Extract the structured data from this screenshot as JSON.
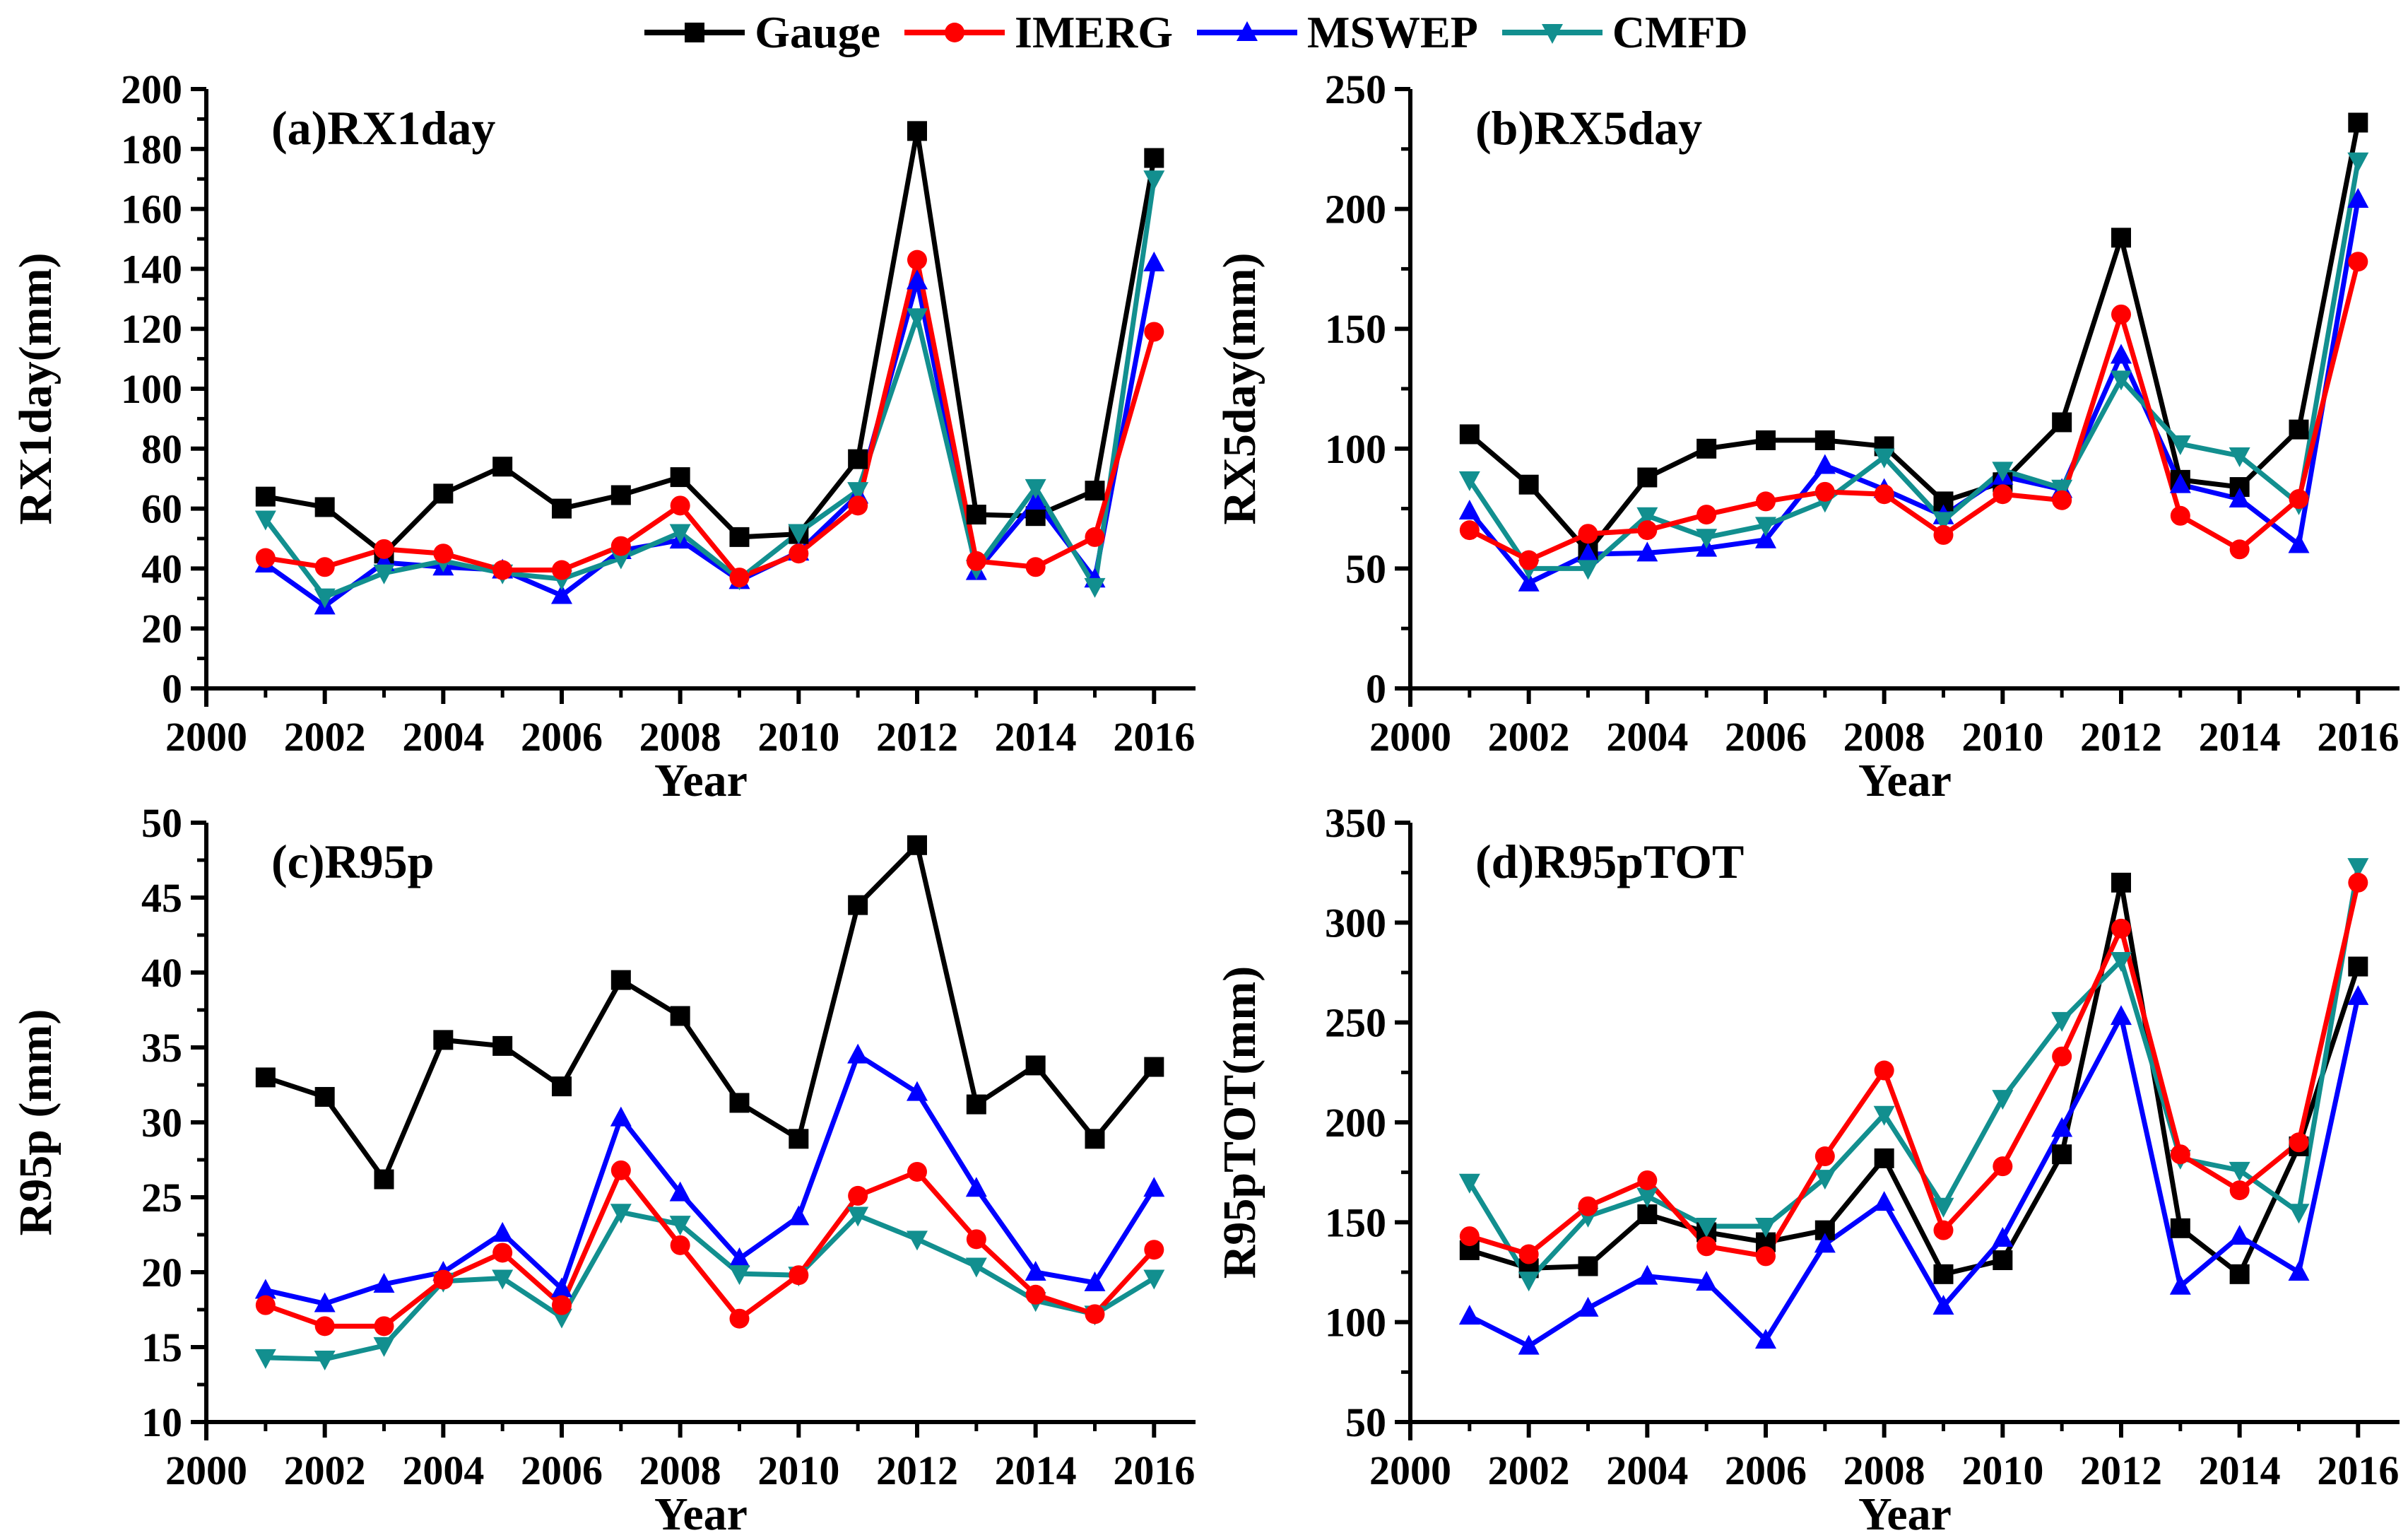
{
  "figure": {
    "background": "#ffffff",
    "legend": {
      "position": "top-center",
      "items": [
        {
          "label": "Gauge",
          "color": "#000000",
          "marker": "square"
        },
        {
          "label": "IMERG",
          "color": "#ff0000",
          "marker": "circle"
        },
        {
          "label": "MSWEP",
          "color": "#0000ff",
          "marker": "triangle-up"
        },
        {
          "label": "CMFD",
          "color": "#128f8f",
          "marker": "triangle-down"
        }
      ]
    }
  },
  "chart_data": [
    {
      "type": "line",
      "panel_label": "(a)RX1day",
      "ylabel": "RX1day(mm)",
      "xlabel": "Year",
      "grid": false,
      "xlim": [
        2000,
        2016.7
      ],
      "ylim": [
        0,
        200
      ],
      "xticks": [
        2000,
        2002,
        2004,
        2006,
        2008,
        2010,
        2012,
        2014,
        2016
      ],
      "xticks_minor": [
        2001,
        2003,
        2005,
        2007,
        2009,
        2011,
        2013,
        2015
      ],
      "ytick_step": 20,
      "ytick_minor_step": 10,
      "x": [
        2001,
        2002,
        2003,
        2004,
        2005,
        2006,
        2007,
        2008,
        2009,
        2010,
        2011,
        2012,
        2013,
        2014,
        2015,
        2016
      ],
      "series": [
        {
          "name": "Gauge",
          "color": "#000000",
          "marker": "square",
          "values": [
            64,
            60.5,
            45,
            65,
            74,
            60,
            64.5,
            70.5,
            50.5,
            51.5,
            76.5,
            186,
            58,
            57.5,
            66,
            177
          ]
        },
        {
          "name": "IMERG",
          "color": "#ff0000",
          "marker": "circle",
          "values": [
            43.5,
            40.5,
            46.5,
            45,
            39.5,
            39.5,
            47.5,
            61,
            37,
            45,
            61,
            143,
            42.5,
            40.5,
            50.5,
            119
          ]
        },
        {
          "name": "MSWEP",
          "color": "#0000ff",
          "marker": "triangle-up",
          "values": [
            41.5,
            27.5,
            42,
            40.5,
            39.5,
            31,
            46,
            49.5,
            36,
            45.5,
            64.5,
            136,
            39,
            62.5,
            36.5,
            142
          ]
        },
        {
          "name": "CMFD",
          "color": "#128f8f",
          "marker": "triangle-down",
          "values": [
            56.5,
            30.5,
            38.5,
            42.5,
            38.5,
            36.5,
            43.5,
            52,
            36.5,
            52,
            66,
            124,
            40,
            67,
            34,
            170
          ]
        }
      ]
    },
    {
      "type": "line",
      "panel_label": "(b)RX5day",
      "ylabel": "RX5day(mm)",
      "xlabel": "Year",
      "grid": false,
      "xlim": [
        2000,
        2016.7
      ],
      "ylim": [
        0,
        250
      ],
      "xticks": [
        2000,
        2002,
        2004,
        2006,
        2008,
        2010,
        2012,
        2014,
        2016
      ],
      "xticks_minor": [
        2001,
        2003,
        2005,
        2007,
        2009,
        2011,
        2013,
        2015
      ],
      "ytick_step": 50,
      "ytick_minor_step": 25,
      "x": [
        2001,
        2002,
        2003,
        2004,
        2005,
        2006,
        2007,
        2008,
        2009,
        2010,
        2011,
        2012,
        2013,
        2014,
        2015,
        2016
      ],
      "series": [
        {
          "name": "Gauge",
          "color": "#000000",
          "marker": "square",
          "values": [
            106,
            85,
            57,
            88,
            100,
            103.5,
            103.5,
            101,
            78,
            86,
            111,
            188,
            87,
            84,
            108,
            236
          ]
        },
        {
          "name": "IMERG",
          "color": "#ff0000",
          "marker": "circle",
          "values": [
            66,
            53.5,
            64.5,
            66,
            72.5,
            78,
            82,
            81,
            64,
            81,
            78.5,
            156,
            72,
            58,
            79,
            178
          ]
        },
        {
          "name": "MSWEP",
          "color": "#0000ff",
          "marker": "triangle-up",
          "values": [
            74,
            44,
            56,
            56.5,
            58.5,
            62,
            93,
            83,
            72,
            88.5,
            83,
            139,
            85,
            79,
            60,
            204
          ]
        },
        {
          "name": "CMFD",
          "color": "#128f8f",
          "marker": "triangle-down",
          "values": [
            87,
            50,
            50,
            72,
            63,
            68,
            78,
            96.5,
            70,
            91,
            83.5,
            129,
            102,
            97,
            77,
            220
          ]
        }
      ]
    },
    {
      "type": "line",
      "panel_label": "(c)R95p",
      "ylabel": "R95p (mm)",
      "xlabel": "Year",
      "grid": false,
      "xlim": [
        2000,
        2016.7
      ],
      "ylim": [
        10,
        50
      ],
      "xticks": [
        2000,
        2002,
        2004,
        2006,
        2008,
        2010,
        2012,
        2014,
        2016
      ],
      "xticks_minor": [
        2001,
        2003,
        2005,
        2007,
        2009,
        2011,
        2013,
        2015
      ],
      "ytick_step": 5,
      "ytick_minor_step": 2.5,
      "x": [
        2001,
        2002,
        2003,
        2004,
        2005,
        2006,
        2007,
        2008,
        2009,
        2010,
        2011,
        2012,
        2013,
        2014,
        2015,
        2016
      ],
      "series": [
        {
          "name": "Gauge",
          "color": "#000000",
          "marker": "square",
          "values": [
            33,
            31.7,
            26.2,
            35.5,
            35.1,
            32.4,
            39.5,
            37.1,
            31.3,
            28.9,
            44.5,
            48.5,
            31.2,
            33.8,
            28.9,
            33.7
          ]
        },
        {
          "name": "IMERG",
          "color": "#ff0000",
          "marker": "circle",
          "values": [
            17.8,
            16.4,
            16.4,
            19.5,
            21.3,
            17.8,
            26.8,
            21.8,
            16.9,
            19.8,
            25.1,
            26.7,
            22.2,
            18.5,
            17.2,
            21.5
          ]
        },
        {
          "name": "MSWEP",
          "color": "#0000ff",
          "marker": "triangle-up",
          "values": [
            18.8,
            17.9,
            19.2,
            20,
            22.6,
            18.9,
            30.3,
            25.3,
            20.9,
            23.7,
            34.5,
            32,
            25.6,
            20,
            19.3,
            25.6
          ]
        },
        {
          "name": "CMFD",
          "color": "#128f8f",
          "marker": "triangle-down",
          "values": [
            14.3,
            14.2,
            15.1,
            19.4,
            19.6,
            17,
            24,
            23.2,
            19.9,
            19.8,
            23.8,
            22.2,
            20.4,
            18.1,
            17.2,
            19.6
          ]
        }
      ]
    },
    {
      "type": "line",
      "panel_label": "(d)R95pTOT",
      "ylabel": "R95pTOT(mm)",
      "xlabel": "Year",
      "grid": false,
      "xlim": [
        2000,
        2016.7
      ],
      "ylim": [
        50,
        350
      ],
      "xticks": [
        2000,
        2002,
        2004,
        2006,
        2008,
        2010,
        2012,
        2014,
        2016
      ],
      "xticks_minor": [
        2001,
        2003,
        2005,
        2007,
        2009,
        2011,
        2013,
        2015
      ],
      "ytick_step": 50,
      "ytick_minor_step": 25,
      "x": [
        2001,
        2002,
        2003,
        2004,
        2005,
        2006,
        2007,
        2008,
        2009,
        2010,
        2011,
        2012,
        2013,
        2014,
        2015,
        2016
      ],
      "series": [
        {
          "name": "Gauge",
          "color": "#000000",
          "marker": "square",
          "values": [
            136,
            127,
            128,
            154,
            145,
            140,
            146,
            182,
            124,
            131,
            184,
            320,
            147,
            124,
            188,
            278
          ]
        },
        {
          "name": "IMERG",
          "color": "#ff0000",
          "marker": "circle",
          "values": [
            143,
            134,
            158,
            171,
            138,
            133,
            183,
            226,
            146,
            178,
            233,
            297,
            184,
            166,
            190,
            320
          ]
        },
        {
          "name": "MSWEP",
          "color": "#0000ff",
          "marker": "triangle-up",
          "values": [
            103,
            88,
            107,
            123,
            120,
            91,
            139,
            160,
            108,
            142,
            197,
            253,
            118,
            143,
            125,
            263
          ]
        },
        {
          "name": "CMFD",
          "color": "#128f8f",
          "marker": "triangle-down",
          "values": [
            170,
            121,
            153,
            163,
            148,
            148,
            172,
            204,
            158,
            212,
            251,
            281,
            182,
            176,
            155,
            328
          ]
        }
      ]
    }
  ]
}
